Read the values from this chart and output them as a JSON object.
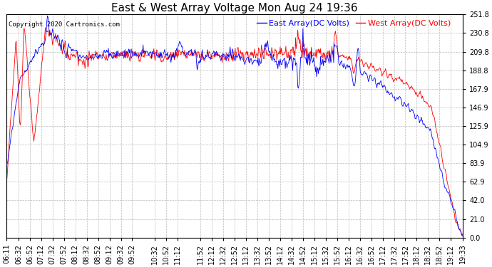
{
  "title": "East & West Array Voltage Mon Aug 24 19:36",
  "copyright": "Copyright 2020 Cartronics.com",
  "legend_east": "East Array(DC Volts)",
  "legend_west": "West Array(DC Volts)",
  "east_color": "#0000ff",
  "west_color": "#ff0000",
  "bg_color": "#ffffff",
  "plot_bg_color": "#ffffff",
  "grid_color": "#bbbbbb",
  "ylim": [
    0.0,
    251.8
  ],
  "yticks": [
    0.0,
    21.0,
    42.0,
    62.9,
    83.9,
    104.9,
    125.9,
    146.9,
    167.9,
    188.8,
    209.8,
    230.8,
    251.8
  ],
  "xtick_labels": [
    "06:11",
    "06:32",
    "06:52",
    "07:12",
    "07:32",
    "07:52",
    "08:12",
    "08:32",
    "08:52",
    "09:12",
    "09:32",
    "09:52",
    "10:32",
    "10:52",
    "11:12",
    "11:52",
    "12:12",
    "12:32",
    "12:52",
    "13:12",
    "13:32",
    "13:52",
    "14:12",
    "14:32",
    "14:52",
    "15:12",
    "15:32",
    "15:52",
    "16:12",
    "16:32",
    "16:52",
    "17:12",
    "17:32",
    "17:52",
    "18:12",
    "18:32",
    "18:52",
    "19:12",
    "19:33"
  ],
  "title_fontsize": 11,
  "legend_fontsize": 8,
  "tick_fontsize": 7,
  "copyright_fontsize": 6.5
}
